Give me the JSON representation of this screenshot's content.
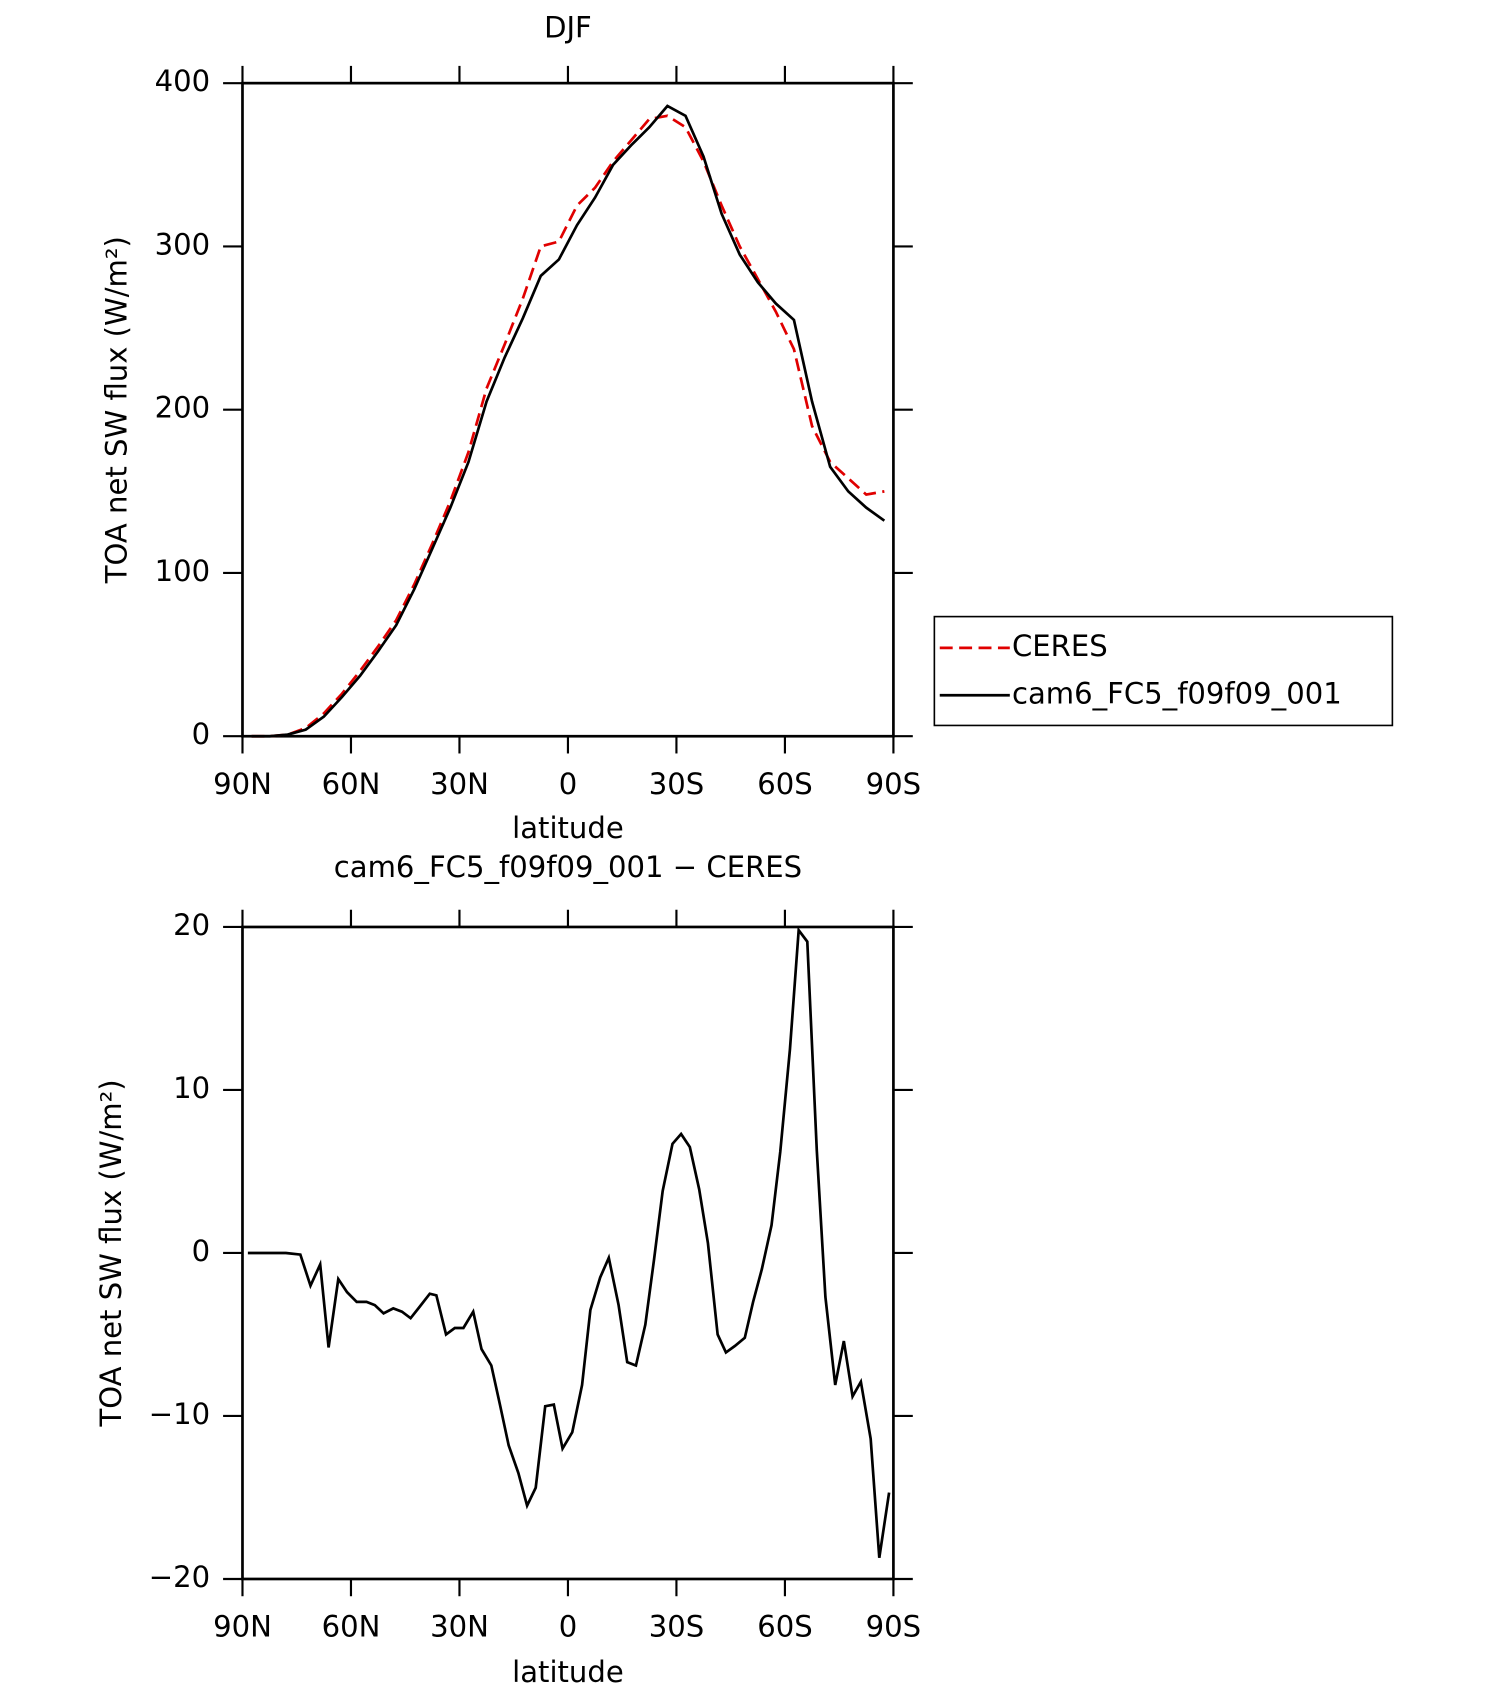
{
  "chart_data": [
    {
      "type": "line",
      "title": "DJF",
      "xlabel": "latitude",
      "ylabel": "TOA net SW flux (W/m²)",
      "x": [
        87.5,
        82.5,
        77.5,
        72.5,
        67.5,
        62.5,
        57.5,
        52.5,
        47.5,
        42.5,
        37.5,
        32.5,
        27.5,
        22.5,
        17.5,
        12.5,
        7.5,
        2.5,
        -2.5,
        -7.5,
        -12.5,
        -17.5,
        -22.5,
        -27.5,
        -32.5,
        -37.5,
        -42.5,
        -47.5,
        -52.5,
        -57.5,
        -62.5,
        -67.5,
        -72.5,
        -77.5,
        -82.5,
        -87.5
      ],
      "series": [
        {
          "name": "CERES",
          "color": "#e00000",
          "dashed": true,
          "values": [
            0,
            0,
            1,
            5,
            14,
            26,
            40,
            55,
            71,
            93,
            118,
            144,
            174,
            213,
            240,
            268,
            300,
            303,
            325,
            336,
            352,
            365,
            378,
            380,
            373,
            352,
            325,
            300,
            280,
            260,
            237,
            190,
            168,
            158,
            148,
            150
          ]
        },
        {
          "name": "cam6_FC5_f09f09_001",
          "color": "#000000",
          "dashed": false,
          "values": [
            0,
            0,
            1,
            4,
            12,
            24,
            37,
            52,
            68,
            90,
            115,
            140,
            168,
            205,
            232,
            256,
            282,
            292,
            313,
            330,
            350,
            362,
            373,
            386,
            380,
            355,
            320,
            295,
            278,
            265,
            255,
            205,
            165,
            150,
            140,
            132
          ]
        }
      ],
      "xlim": [
        90,
        -90
      ],
      "xticks": [
        {
          "value": 90,
          "label": "90N"
        },
        {
          "value": 60,
          "label": "60N"
        },
        {
          "value": 30,
          "label": "30N"
        },
        0,
        {
          "value": -30,
          "label": "30S"
        },
        {
          "value": -60,
          "label": "60S"
        },
        {
          "value": -90,
          "label": "90S"
        }
      ],
      "ylim": [
        0,
        400
      ],
      "yticks": [
        0,
        100,
        200,
        300,
        400
      ],
      "legend": "right"
    },
    {
      "type": "line",
      "title": "cam6_FC5_f09f09_001 − CERES",
      "xlabel": "latitude",
      "ylabel": "TOA net SW flux (W/m²)",
      "x": [
        88.5,
        82.5,
        78,
        74,
        71.2,
        68.5,
        66.2,
        63.5,
        61.1,
        58.4,
        55.7,
        53.4,
        51,
        48.3,
        45.9,
        43.5,
        41,
        38.2,
        36.4,
        33.7,
        31.3,
        28.9,
        26.2,
        23.9,
        21.2,
        18.8,
        16.4,
        13.7,
        11.3,
        8.9,
        6.3,
        3.9,
        1.5,
        -1.2,
        -3.9,
        -6.2,
        -8.9,
        -11.3,
        -14,
        -16.4,
        -18.8,
        -21.4,
        -23.8,
        -26.2,
        -28.9,
        -31.3,
        -33.7,
        -36.3,
        -38.7,
        -41.4,
        -43.7,
        -46.2,
        -48.9,
        -51.2,
        -53.6,
        -56.3,
        -58.7,
        -61.4,
        -63.8,
        -66.2,
        -68.8,
        -71.2,
        -73.9,
        -76.3,
        -78.7,
        -81,
        -83.7,
        -86.1,
        -88.8
      ],
      "series": [
        {
          "color": "#000000",
          "dashed": false,
          "values": [
            0,
            0,
            0,
            -0.1,
            -2,
            -0.7,
            -5.8,
            -1.6,
            -2.4,
            -3,
            -3,
            -3.2,
            -3.7,
            -3.4,
            -3.6,
            -4,
            -3.3,
            -2.5,
            -2.6,
            -5,
            -4.6,
            -4.6,
            -3.6,
            -5.9,
            -6.9,
            -9.3,
            -11.8,
            -13.5,
            -15.5,
            -14.4,
            -9.4,
            -9.3,
            -12,
            -11,
            -8.1,
            -3.5,
            -1.5,
            -0.3,
            -3.2,
            -6.7,
            -6.9,
            -4.4,
            -0.4,
            3.8,
            6.7,
            7.3,
            6.5,
            3.9,
            0.6,
            -5,
            -6.1,
            -5.7,
            -5.2,
            -3,
            -1,
            1.7,
            6.2,
            12.5,
            19.8,
            19.1,
            6.3,
            -2.7,
            -8.1,
            -5.4,
            -8.8,
            -7.9,
            -11.4,
            -18.7,
            -14.7
          ]
        }
      ],
      "xlim": [
        90,
        -90
      ],
      "xticks": [
        {
          "value": 90,
          "label": "90N"
        },
        {
          "value": 60,
          "label": "60N"
        },
        {
          "value": 30,
          "label": "30N"
        },
        0,
        {
          "value": -30,
          "label": "30S"
        },
        {
          "value": -60,
          "label": "60S"
        },
        {
          "value": -90,
          "label": "90S"
        }
      ],
      "ylim": [
        -20,
        20
      ],
      "yticks": [
        {
          "value": -20,
          "label": "−20"
        },
        {
          "value": -10,
          "label": "−10"
        },
        0,
        10,
        20
      ]
    }
  ]
}
